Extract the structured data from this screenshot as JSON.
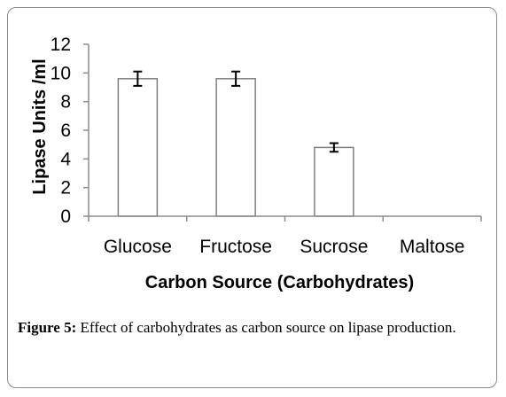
{
  "chart_data": {
    "type": "bar",
    "categories": [
      "Glucose",
      "Fructose",
      "Sucrose",
      "Maltose"
    ],
    "values": [
      9.6,
      9.6,
      4.8,
      0
    ],
    "errors": [
      0.5,
      0.5,
      0.3,
      0
    ],
    "xlabel": "Carbon Source (Carbohydrates)",
    "ylabel": "Lipase Units /ml",
    "ylim": [
      0,
      12
    ],
    "yticks": [
      "0",
      "2",
      "4",
      "6",
      "8",
      "10",
      "12"
    ],
    "grid": false,
    "legend": "none",
    "bar_fill": "#ffffff",
    "bar_stroke": "#7f7f7f",
    "axis_color": "#8c8c8c"
  },
  "caption": {
    "label": "Figure 5:",
    "text": " Effect of carbohydrates as carbon source on lipase production."
  }
}
